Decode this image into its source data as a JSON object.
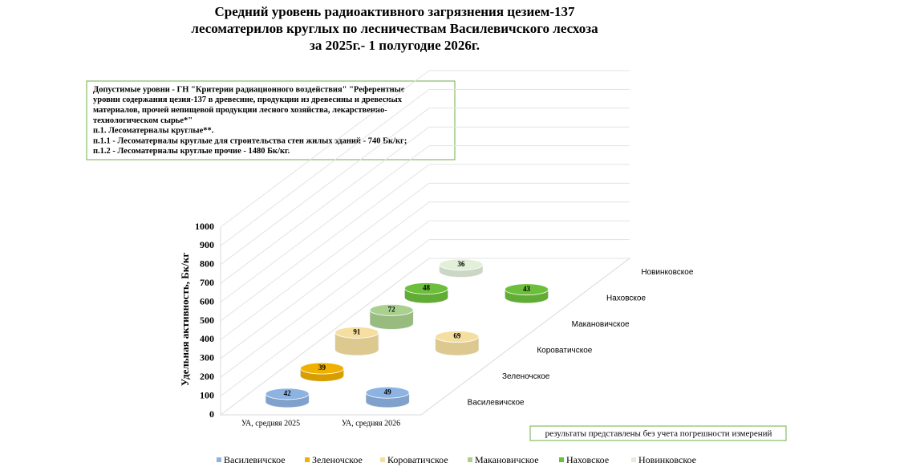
{
  "chart_data": {
    "type": "bar3d",
    "title_lines": [
      "Средний уровень радиоактивного загрязнения цезием-137",
      "лесоматерилов круглых по лесничествам Василевичского лесхоза",
      "за 2025г.- 1 полугодие 2026г."
    ],
    "annotation_lines": [
      "Допустимые уровни - ГН \"Критерии радиационного воздействия\" \"Референтные",
      "уровни содержания цезия-137 в древесине, продукции из древесины и древесных",
      "материалов, прочей непищевой продукции лесного хозяйства,  лекарственно-",
      "технологическом сырье*\"",
      "п.1. Лесоматерналы круглые**.",
      "п.1.1 - Лесоматерналы круглые для строительства стен жилых зданий - 740 Бк/кг;",
      "п.1.2 - Лесоматерналы круглые прочие - 1480 Бк/кг."
    ],
    "note": "результаты представлены без учета погрешности измерений",
    "y_label": "Удельная активность, Бк/кг",
    "categories": [
      "УА, средняя 2025",
      "УА, средняя 2026"
    ],
    "series": [
      {
        "name": "Василевичское",
        "color": "#8db3e2",
        "values": [
          42,
          49
        ]
      },
      {
        "name": "Зеленочское",
        "color": "#f0b000",
        "values": [
          39,
          null
        ]
      },
      {
        "name": "Короватичское",
        "color": "#f5dfa0",
        "values": [
          91,
          69
        ]
      },
      {
        "name": "Макановичское",
        "color": "#a9d08e",
        "values": [
          72,
          null
        ]
      },
      {
        "name": "Наховское",
        "color": "#6cbf3a",
        "values": [
          48,
          43
        ]
      },
      {
        "name": "Новинковское",
        "color": "#e2efd9",
        "values": [
          36,
          null
        ]
      }
    ],
    "ylim": [
      0,
      1000
    ],
    "yticks": [
      0,
      100,
      200,
      300,
      400,
      500,
      600,
      700,
      800,
      900,
      1000
    ],
    "grid": true
  }
}
